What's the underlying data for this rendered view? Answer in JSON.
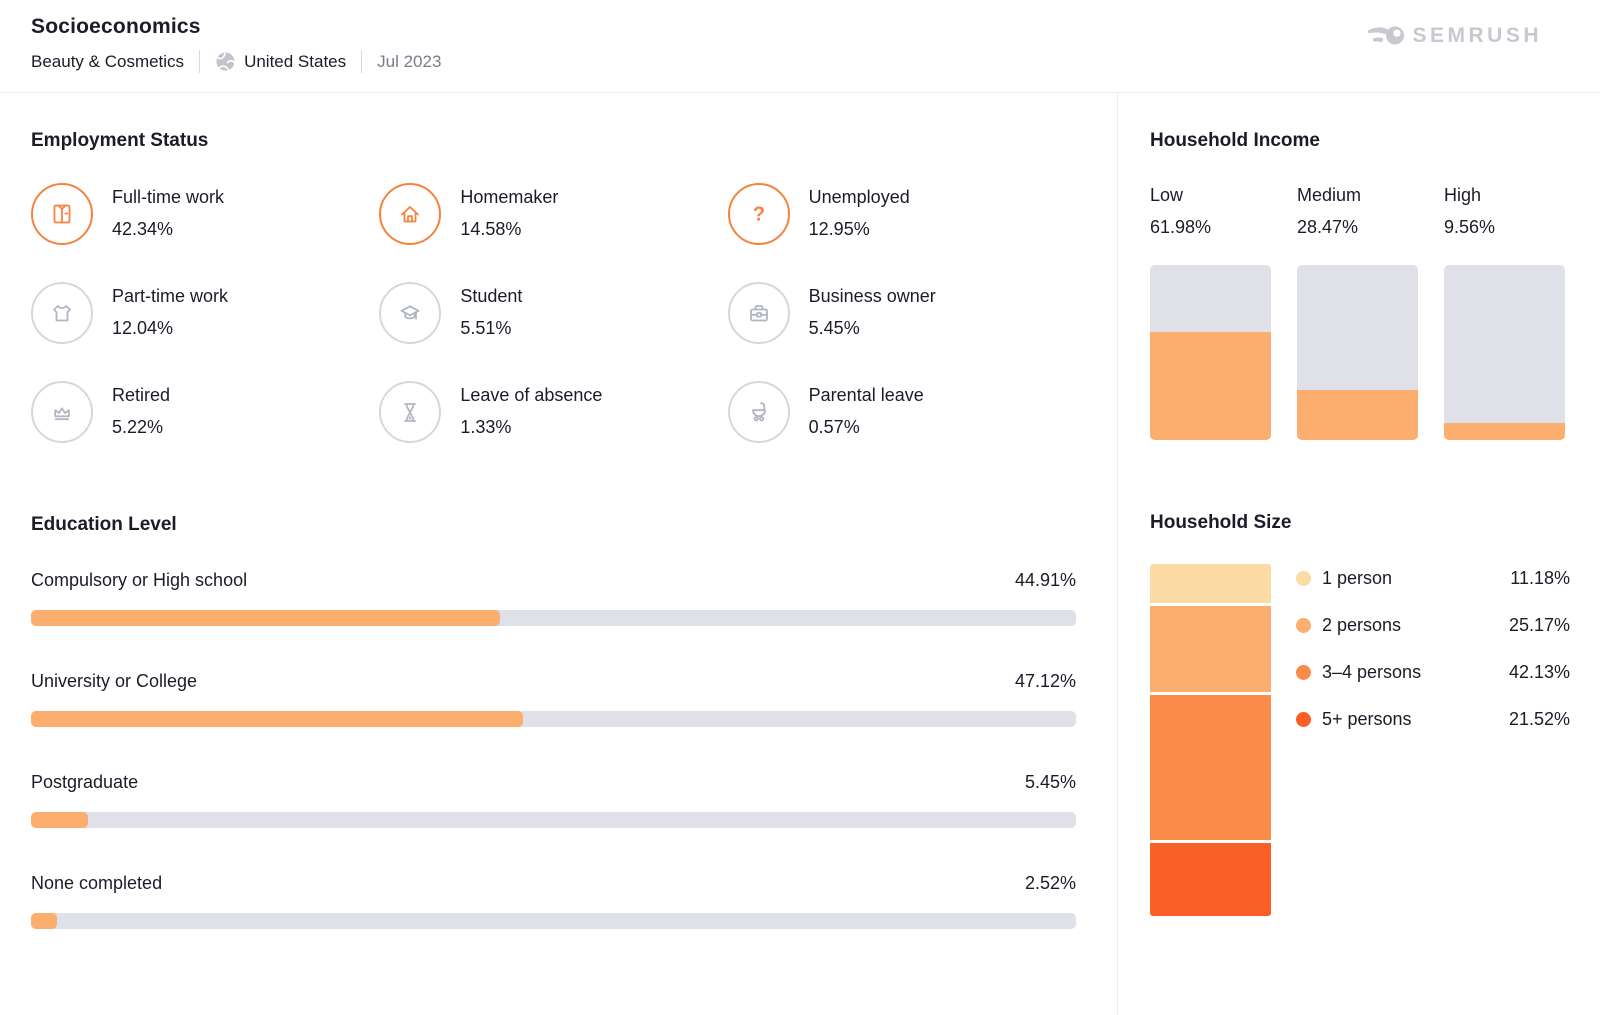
{
  "header": {
    "title": "Socioeconomics",
    "category": "Beauty & Cosmetics",
    "country": "United States",
    "period": "Jul 2023",
    "brand": "SEMRUSH"
  },
  "colors": {
    "accent_orange": "#f5833f",
    "bar_fill_orange": "#fbae6e",
    "bar_track_gray": "#e0e0e8",
    "icon_gray": "#b2b5c3",
    "circle_gray": "#d5d7e0",
    "brand_gray": "#c6c9cf",
    "text_dark": "#1b1c28",
    "text_muted": "#7b7c8a"
  },
  "employment": {
    "heading": "Employment Status",
    "items": [
      {
        "label": "Full-time work",
        "value": "42.34%",
        "icon": "folded-shirt-icon",
        "highlight": true
      },
      {
        "label": "Homemaker",
        "value": "14.58%",
        "icon": "home-icon",
        "highlight": true
      },
      {
        "label": "Unemployed",
        "value": "12.95%",
        "icon": "question-mark-icon",
        "highlight": true
      },
      {
        "label": "Part-time work",
        "value": "12.04%",
        "icon": "tshirt-icon",
        "highlight": false
      },
      {
        "label": "Student",
        "value": "5.51%",
        "icon": "graduation-cap-icon",
        "highlight": false
      },
      {
        "label": "Business owner",
        "value": "5.45%",
        "icon": "briefcase-icon",
        "highlight": false
      },
      {
        "label": "Retired",
        "value": "5.22%",
        "icon": "crown-icon",
        "highlight": false
      },
      {
        "label": "Leave of absence",
        "value": "1.33%",
        "icon": "hourglass-icon",
        "highlight": false
      },
      {
        "label": "Parental leave",
        "value": "0.57%",
        "icon": "stroller-icon",
        "highlight": false
      }
    ]
  },
  "income": {
    "heading": "Household Income",
    "items": [
      {
        "label": "Low",
        "value": "61.98%",
        "pct": 61.98
      },
      {
        "label": "Medium",
        "value": "28.47%",
        "pct": 28.47
      },
      {
        "label": "High",
        "value": "9.56%",
        "pct": 9.56
      }
    ]
  },
  "education": {
    "heading": "Education Level",
    "items": [
      {
        "label": "Compulsory or High school",
        "value": "44.91%",
        "pct": 44.91
      },
      {
        "label": "University or College",
        "value": "47.12%",
        "pct": 47.12
      },
      {
        "label": "Postgraduate",
        "value": "5.45%",
        "pct": 5.45
      },
      {
        "label": "None completed",
        "value": "2.52%",
        "pct": 2.52
      }
    ]
  },
  "household_size": {
    "heading": "Household Size",
    "items": [
      {
        "label": "1 person",
        "value": "11.18%",
        "pct": 11.18,
        "color": "#fcdca4"
      },
      {
        "label": "2 persons",
        "value": "25.17%",
        "pct": 25.17,
        "color": "#fbae6e"
      },
      {
        "label": "3–4 persons",
        "value": "42.13%",
        "pct": 42.13,
        "color": "#fa8b49"
      },
      {
        "label": "5+ persons",
        "value": "21.52%",
        "pct": 21.52,
        "color": "#fb5f28"
      }
    ]
  },
  "chart_data": [
    {
      "type": "bar",
      "title": "Employment Status",
      "categories": [
        "Full-time work",
        "Homemaker",
        "Unemployed",
        "Part-time work",
        "Student",
        "Business owner",
        "Retired",
        "Leave of absence",
        "Parental leave"
      ],
      "values": [
        42.34,
        14.58,
        12.95,
        12.04,
        5.51,
        5.45,
        5.22,
        1.33,
        0.57
      ],
      "unit": "%",
      "layout": "icon-stat-grid"
    },
    {
      "type": "bar",
      "title": "Household Income",
      "categories": [
        "Low",
        "Medium",
        "High"
      ],
      "values": [
        61.98,
        28.47,
        9.56
      ],
      "unit": "%",
      "ylim": [
        0,
        100
      ],
      "layout": "vertical-fill-bars"
    },
    {
      "type": "bar",
      "title": "Education Level",
      "categories": [
        "Compulsory or High school",
        "University or College",
        "Postgraduate",
        "None completed"
      ],
      "values": [
        44.91,
        47.12,
        5.45,
        2.52
      ],
      "unit": "%",
      "xlim": [
        0,
        100
      ],
      "layout": "horizontal-progress-bars"
    },
    {
      "type": "bar",
      "title": "Household Size",
      "categories": [
        "1 person",
        "2 persons",
        "3–4 persons",
        "5+ persons"
      ],
      "values": [
        11.18,
        25.17,
        42.13,
        21.52
      ],
      "unit": "%",
      "layout": "stacked-column",
      "legend_position": "right"
    }
  ]
}
